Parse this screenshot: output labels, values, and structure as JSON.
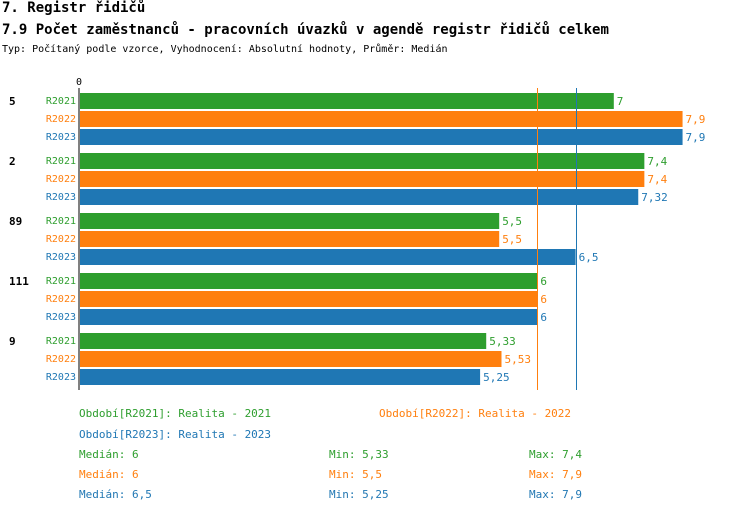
{
  "header": {
    "section": "7. Registr řidičů",
    "title": "7.9 Počet zaměstnanců - pracovních úvazků v agendě registr řidičů celkem",
    "subtitle": "Typ: Počítaný podle vzorce, Vyhodnocení: Absolutní hodnoty, Průměr: Medián"
  },
  "colors": {
    "R2021": "#2e9e2e",
    "R2022": "#ff7f0e",
    "R2023": "#1f77b4"
  },
  "chart_data": {
    "type": "bar",
    "orientation": "horizontal",
    "title": "7.9 Počet zaměstnanců - pracovních úvazků v agendě registr řidičů celkem",
    "axis_zero_label": "0",
    "xlim": [
      0,
      8.5
    ],
    "categories": [
      "5",
      "2",
      "89",
      "111",
      "9"
    ],
    "series": [
      {
        "name": "R2021",
        "values": [
          7,
          7.4,
          5.5,
          6,
          5.33
        ],
        "labels": [
          "7",
          "7,4",
          "5,5",
          "6",
          "5,33"
        ]
      },
      {
        "name": "R2022",
        "values": [
          7.9,
          7.4,
          5.5,
          6,
          5.53
        ],
        "labels": [
          "7,9",
          "7,4",
          "5,5",
          "6",
          "5,53"
        ]
      },
      {
        "name": "R2023",
        "values": [
          7.9,
          7.32,
          6.5,
          6,
          5.25
        ],
        "labels": [
          "7,9",
          "7,32",
          "6,5",
          "6",
          "5,25"
        ]
      }
    ],
    "median_lines": [
      {
        "series": "R2022",
        "value": 6
      },
      {
        "series": "R2023",
        "value": 6.5
      }
    ]
  },
  "legend": {
    "r2021": "Období[R2021]: Realita - 2021",
    "r2022": "Období[R2022]: Realita - 2022",
    "r2023": "Období[R2023]: Realita - 2023"
  },
  "stats": [
    {
      "series": "R2021",
      "median": "Medián: 6",
      "min": "Min: 5,33",
      "max": "Max: 7,4"
    },
    {
      "series": "R2022",
      "median": "Medián: 6",
      "min": "Min: 5,5",
      "max": "Max: 7,9"
    },
    {
      "series": "R2023",
      "median": "Medián: 6,5",
      "min": "Min: 5,25",
      "max": "Max: 7,9"
    }
  ]
}
